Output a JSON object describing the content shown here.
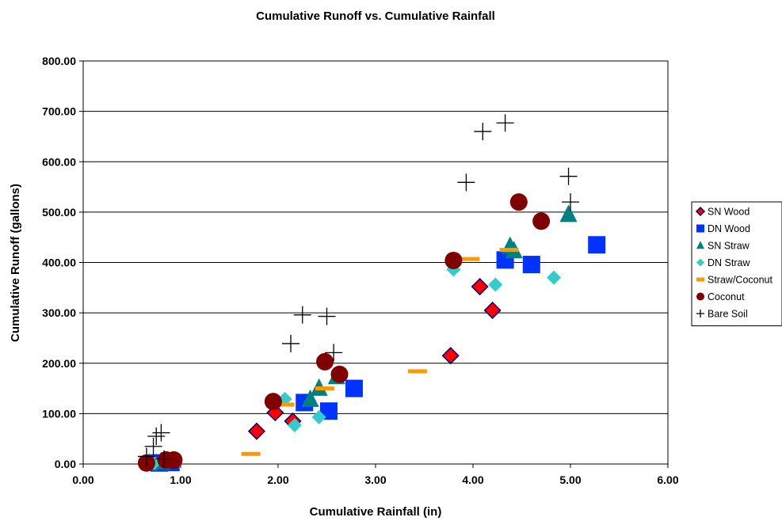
{
  "chart_data": {
    "type": "scatter",
    "title": "Cumulative Runoff vs. Cumulative Rainfall",
    "xlabel": "Cumulative Rainfall (in)",
    "ylabel": "Cumulative Runoff (gallons)",
    "xlim": [
      0,
      6
    ],
    "ylim": [
      0,
      800
    ],
    "x_ticks": [
      "0.00",
      "1.00",
      "2.00",
      "3.00",
      "4.00",
      "5.00",
      "6.00"
    ],
    "y_ticks": [
      "0.00",
      "100.00",
      "200.00",
      "300.00",
      "400.00",
      "500.00",
      "600.00",
      "700.00",
      "800.00"
    ],
    "grid": "horizontal",
    "legend_position": "right",
    "series": [
      {
        "name": "SN Wood",
        "marker": "diamond",
        "color": "#ff0000",
        "edge": "#000080",
        "points": [
          [
            0.75,
            3
          ],
          [
            0.85,
            5
          ],
          [
            1.78,
            65
          ],
          [
            1.97,
            102
          ],
          [
            2.15,
            85
          ],
          [
            3.77,
            215
          ],
          [
            4.07,
            352
          ],
          [
            4.2,
            305
          ]
        ]
      },
      {
        "name": "DN Wood",
        "marker": "square",
        "color": "#0033ff",
        "points": [
          [
            0.78,
            2
          ],
          [
            0.9,
            3
          ],
          [
            2.27,
            122
          ],
          [
            2.52,
            105
          ],
          [
            2.78,
            150
          ],
          [
            4.33,
            405
          ],
          [
            4.6,
            396
          ],
          [
            5.27,
            435
          ]
        ]
      },
      {
        "name": "SN Straw",
        "marker": "triangle",
        "color": "#008080",
        "points": [
          [
            0.68,
            2
          ],
          [
            0.8,
            4
          ],
          [
            2.33,
            128
          ],
          [
            2.42,
            150
          ],
          [
            2.6,
            173
          ],
          [
            4.38,
            432
          ],
          [
            4.42,
            423
          ],
          [
            4.98,
            495
          ]
        ]
      },
      {
        "name": "DN Straw",
        "marker": "smalldiamond",
        "color": "#33cccc",
        "points": [
          [
            0.73,
            2
          ],
          [
            0.85,
            4
          ],
          [
            2.07,
            129
          ],
          [
            2.17,
            77
          ],
          [
            2.42,
            93
          ],
          [
            3.8,
            386
          ],
          [
            4.23,
            356
          ],
          [
            4.83,
            370
          ]
        ]
      },
      {
        "name": "Straw/Coconut",
        "marker": "dash",
        "color": "#ff9900",
        "points": [
          [
            1.72,
            20
          ],
          [
            2.07,
            118
          ],
          [
            2.48,
            150
          ],
          [
            3.43,
            184
          ],
          [
            3.97,
            407
          ],
          [
            4.37,
            425
          ]
        ]
      },
      {
        "name": "Coconut",
        "marker": "circle",
        "color": "#800000",
        "points": [
          [
            0.65,
            2
          ],
          [
            0.85,
            8
          ],
          [
            0.93,
            8
          ],
          [
            1.95,
            124
          ],
          [
            2.48,
            203
          ],
          [
            2.63,
            178
          ],
          [
            3.8,
            404
          ],
          [
            4.47,
            520
          ],
          [
            4.7,
            482
          ]
        ]
      },
      {
        "name": "Bare Soil",
        "marker": "plus",
        "color": "#000000",
        "points": [
          [
            0.65,
            15
          ],
          [
            0.72,
            35
          ],
          [
            0.75,
            55
          ],
          [
            0.8,
            62
          ],
          [
            0.83,
            10
          ],
          [
            2.13,
            239
          ],
          [
            2.25,
            296
          ],
          [
            2.5,
            293
          ],
          [
            2.57,
            221
          ],
          [
            3.93,
            559
          ],
          [
            4.1,
            660
          ],
          [
            4.33,
            677
          ],
          [
            4.98,
            571
          ],
          [
            5.0,
            520
          ]
        ]
      }
    ]
  }
}
